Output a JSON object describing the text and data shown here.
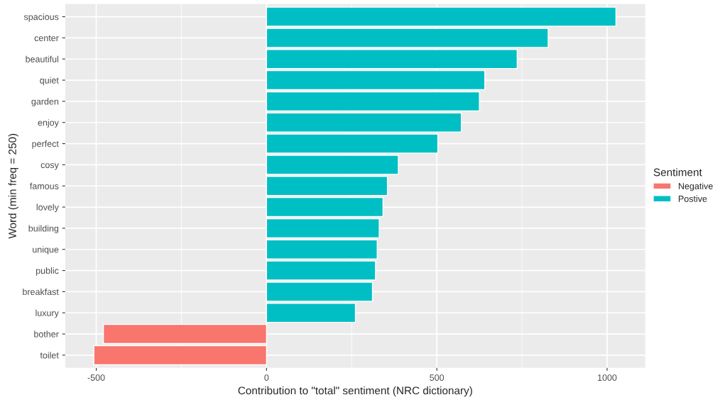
{
  "chart_data": {
    "type": "bar",
    "orientation": "horizontal",
    "xlabel": "Contribution to \"total\" sentiment (NRC dictionary)",
    "ylabel": "Word (min freq = 250)",
    "legend_title": "Sentiment",
    "legend": "right",
    "grid": true,
    "categories": [
      "spacious",
      "center",
      "beautiful",
      "quiet",
      "garden",
      "enjoy",
      "perfect",
      "cosy",
      "famous",
      "lovely",
      "building",
      "unique",
      "public",
      "breakfast",
      "luxury",
      "bother",
      "toilet"
    ],
    "series": [
      {
        "name": "Negative",
        "color": "#f8766d",
        "values": [
          null,
          null,
          null,
          null,
          null,
          null,
          null,
          null,
          null,
          null,
          null,
          null,
          null,
          null,
          null,
          -479,
          -507
        ]
      },
      {
        "name": "Postive",
        "color": "#00bfc4",
        "values": [
          1026,
          827,
          736,
          641,
          625,
          572,
          503,
          387,
          355,
          342,
          331,
          325,
          320,
          311,
          261,
          null,
          null
        ]
      }
    ],
    "xlim": [
      -591,
      1112
    ],
    "xticks": [
      -500,
      0,
      500,
      1000
    ]
  }
}
